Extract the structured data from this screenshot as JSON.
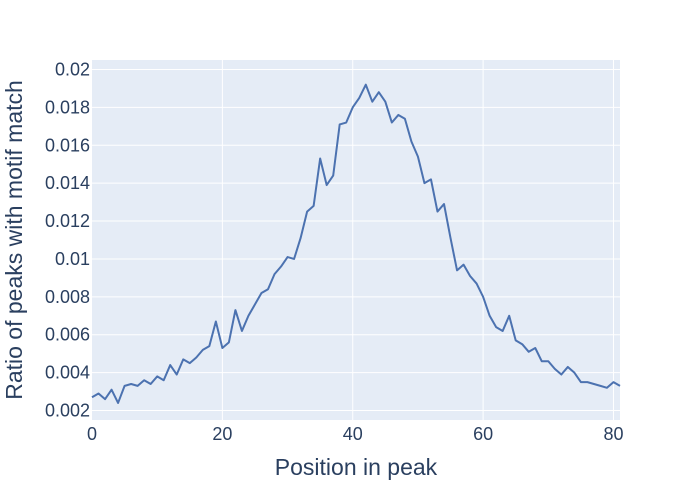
{
  "chart_data": {
    "type": "line",
    "title": "",
    "xlabel": "Position in peak",
    "ylabel": "Ratio of peaks with motif match",
    "xlim": [
      0,
      81
    ],
    "ylim": [
      0.0015,
      0.0205
    ],
    "x_ticks": [
      0,
      20,
      40,
      60,
      80
    ],
    "x_tick_labels": [
      "0",
      "20",
      "40",
      "60",
      "80"
    ],
    "y_ticks": [
      0.002,
      0.004,
      0.006,
      0.008,
      0.01,
      0.012,
      0.014,
      0.016,
      0.018,
      0.02
    ],
    "y_tick_labels": [
      "0.002",
      "0.004",
      "0.006",
      "0.008",
      "0.01",
      "0.012",
      "0.014",
      "0.016",
      "0.018",
      "0.02"
    ],
    "grid": true,
    "colors": {
      "background": "#e5ecf6",
      "grid": "#ffffff",
      "line": "#4c72b0",
      "text": "#2a3f5f"
    },
    "series": [
      {
        "values": [
          [
            0,
            0.0027
          ],
          [
            1,
            0.0029
          ],
          [
            2,
            0.0026
          ],
          [
            3,
            0.0031
          ],
          [
            4,
            0.0024
          ],
          [
            5,
            0.0033
          ],
          [
            6,
            0.0034
          ],
          [
            7,
            0.0033
          ],
          [
            8,
            0.0036
          ],
          [
            9,
            0.0034
          ],
          [
            10,
            0.0038
          ],
          [
            11,
            0.0036
          ],
          [
            12,
            0.0044
          ],
          [
            13,
            0.0039
          ],
          [
            14,
            0.0047
          ],
          [
            15,
            0.0045
          ],
          [
            16,
            0.0048
          ],
          [
            17,
            0.0052
          ],
          [
            18,
            0.0054
          ],
          [
            19,
            0.0067
          ],
          [
            20,
            0.0053
          ],
          [
            21,
            0.0056
          ],
          [
            22,
            0.0073
          ],
          [
            23,
            0.0062
          ],
          [
            24,
            0.007
          ],
          [
            25,
            0.0076
          ],
          [
            26,
            0.0082
          ],
          [
            27,
            0.0084
          ],
          [
            28,
            0.0092
          ],
          [
            29,
            0.0096
          ],
          [
            30,
            0.0101
          ],
          [
            31,
            0.01
          ],
          [
            32,
            0.0111
          ],
          [
            33,
            0.0125
          ],
          [
            34,
            0.0128
          ],
          [
            35,
            0.0153
          ],
          [
            36,
            0.0139
          ],
          [
            37,
            0.0144
          ],
          [
            38,
            0.0171
          ],
          [
            39,
            0.0172
          ],
          [
            40,
            0.018
          ],
          [
            41,
            0.0185
          ],
          [
            42,
            0.0192
          ],
          [
            43,
            0.0183
          ],
          [
            44,
            0.0188
          ],
          [
            45,
            0.0183
          ],
          [
            46,
            0.0172
          ],
          [
            47,
            0.0176
          ],
          [
            48,
            0.0174
          ],
          [
            49,
            0.0162
          ],
          [
            50,
            0.0154
          ],
          [
            51,
            0.014
          ],
          [
            52,
            0.0142
          ],
          [
            53,
            0.0125
          ],
          [
            54,
            0.0129
          ],
          [
            55,
            0.0111
          ],
          [
            56,
            0.0094
          ],
          [
            57,
            0.0097
          ],
          [
            58,
            0.0091
          ],
          [
            59,
            0.0087
          ],
          [
            60,
            0.008
          ],
          [
            61,
            0.007
          ],
          [
            62,
            0.0064
          ],
          [
            63,
            0.0062
          ],
          [
            64,
            0.007
          ],
          [
            65,
            0.0057
          ],
          [
            66,
            0.0055
          ],
          [
            67,
            0.0051
          ],
          [
            68,
            0.0053
          ],
          [
            69,
            0.0046
          ],
          [
            70,
            0.0046
          ],
          [
            71,
            0.0042
          ],
          [
            72,
            0.0039
          ],
          [
            73,
            0.0043
          ],
          [
            74,
            0.004
          ],
          [
            75,
            0.0035
          ],
          [
            76,
            0.0035
          ],
          [
            77,
            0.0034
          ],
          [
            78,
            0.0033
          ],
          [
            79,
            0.0032
          ],
          [
            80,
            0.0035
          ],
          [
            81,
            0.0033
          ]
        ]
      }
    ]
  }
}
